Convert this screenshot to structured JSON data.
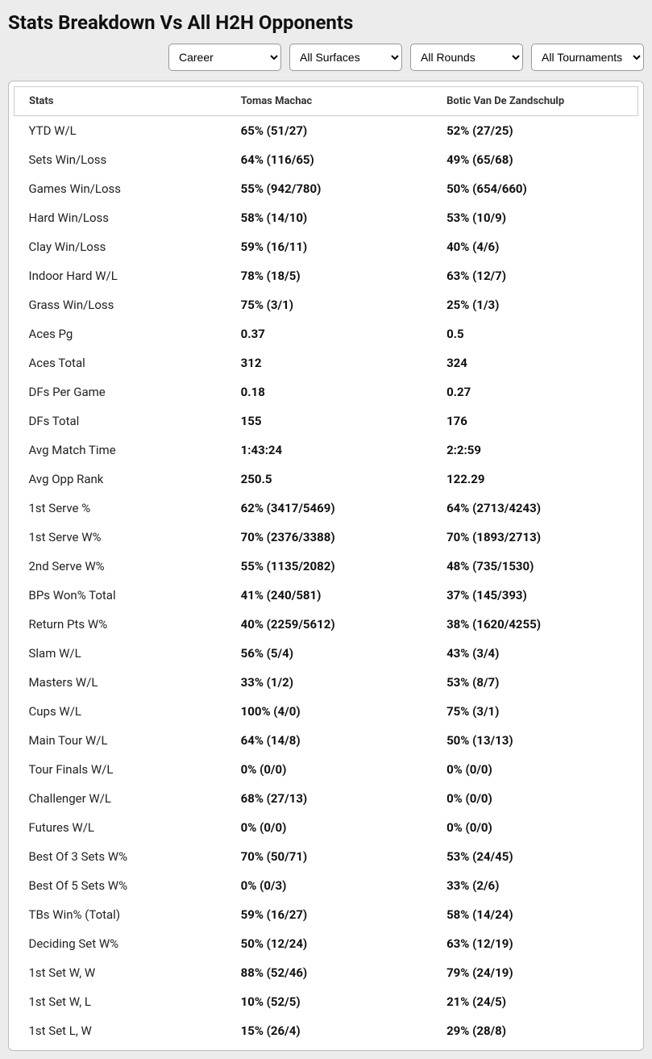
{
  "title": "Stats Breakdown Vs All H2H Opponents",
  "filters": {
    "period": "Career",
    "surface": "All Surfaces",
    "rounds": "All Rounds",
    "tournaments": "All Tournaments"
  },
  "table": {
    "headers": {
      "stats": "Stats",
      "p1": "Tomas Machac",
      "p2": "Botic Van De Zandschulp"
    },
    "rows": [
      {
        "stat": "YTD W/L",
        "p1": "65% (51/27)",
        "p2": "52% (27/25)"
      },
      {
        "stat": "Sets Win/Loss",
        "p1": "64% (116/65)",
        "p2": "49% (65/68)"
      },
      {
        "stat": "Games Win/Loss",
        "p1": "55% (942/780)",
        "p2": "50% (654/660)"
      },
      {
        "stat": "Hard Win/Loss",
        "p1": "58% (14/10)",
        "p2": "53% (10/9)"
      },
      {
        "stat": "Clay Win/Loss",
        "p1": "59% (16/11)",
        "p2": "40% (4/6)"
      },
      {
        "stat": "Indoor Hard W/L",
        "p1": "78% (18/5)",
        "p2": "63% (12/7)"
      },
      {
        "stat": "Grass Win/Loss",
        "p1": "75% (3/1)",
        "p2": "25% (1/3)"
      },
      {
        "stat": "Aces Pg",
        "p1": "0.37",
        "p2": "0.5"
      },
      {
        "stat": "Aces Total",
        "p1": "312",
        "p2": "324"
      },
      {
        "stat": "DFs Per Game",
        "p1": "0.18",
        "p2": "0.27"
      },
      {
        "stat": "DFs Total",
        "p1": "155",
        "p2": "176"
      },
      {
        "stat": "Avg Match Time",
        "p1": "1:43:24",
        "p2": "2:2:59"
      },
      {
        "stat": "Avg Opp Rank",
        "p1": "250.5",
        "p2": "122.29"
      },
      {
        "stat": "1st Serve %",
        "p1": "62% (3417/5469)",
        "p2": "64% (2713/4243)"
      },
      {
        "stat": "1st Serve W%",
        "p1": "70% (2376/3388)",
        "p2": "70% (1893/2713)"
      },
      {
        "stat": "2nd Serve W%",
        "p1": "55% (1135/2082)",
        "p2": "48% (735/1530)"
      },
      {
        "stat": "BPs Won% Total",
        "p1": "41% (240/581)",
        "p2": "37% (145/393)"
      },
      {
        "stat": "Return Pts W%",
        "p1": "40% (2259/5612)",
        "p2": "38% (1620/4255)"
      },
      {
        "stat": "Slam W/L",
        "p1": "56% (5/4)",
        "p2": "43% (3/4)"
      },
      {
        "stat": "Masters W/L",
        "p1": "33% (1/2)",
        "p2": "53% (8/7)"
      },
      {
        "stat": "Cups W/L",
        "p1": "100% (4/0)",
        "p2": "75% (3/1)"
      },
      {
        "stat": "Main Tour W/L",
        "p1": "64% (14/8)",
        "p2": "50% (13/13)"
      },
      {
        "stat": "Tour Finals W/L",
        "p1": "0% (0/0)",
        "p2": "0% (0/0)"
      },
      {
        "stat": "Challenger W/L",
        "p1": "68% (27/13)",
        "p2": "0% (0/0)"
      },
      {
        "stat": "Futures W/L",
        "p1": "0% (0/0)",
        "p2": "0% (0/0)"
      },
      {
        "stat": "Best Of 3 Sets W%",
        "p1": "70% (50/71)",
        "p2": "53% (24/45)"
      },
      {
        "stat": "Best Of 5 Sets W%",
        "p1": "0% (0/3)",
        "p2": "33% (2/6)"
      },
      {
        "stat": "TBs Win% (Total)",
        "p1": "59% (16/27)",
        "p2": "58% (14/24)"
      },
      {
        "stat": "Deciding Set W%",
        "p1": "50% (12/24)",
        "p2": "63% (12/19)"
      },
      {
        "stat": "1st Set W, W",
        "p1": "88% (52/46)",
        "p2": "79% (24/19)"
      },
      {
        "stat": "1st Set W, L",
        "p1": "10% (52/5)",
        "p2": "21% (24/5)"
      },
      {
        "stat": "1st Set L, W",
        "p1": "15% (26/4)",
        "p2": "29% (28/8)"
      }
    ]
  }
}
